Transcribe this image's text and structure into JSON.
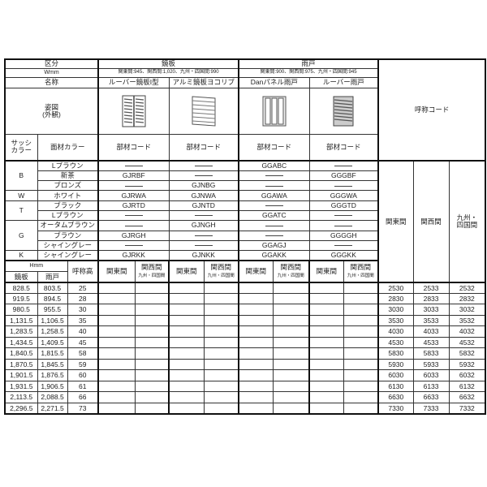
{
  "header": {
    "kubun": "区分",
    "kagami": "鏡板",
    "amado": "雨戸",
    "w_label": "Wmm",
    "w_kagami": "関東間:945、関西間:1,020、九州・四国間:990",
    "w_amado": "関東間:900、関西間:975、九州・四国間:945",
    "name_label": "名称",
    "names": [
      "ルーバー鏡板I型",
      "アルミ鏡板ヨコリブ",
      "Danパネル雨戸",
      "ルーバー雨戸"
    ],
    "figure_label_1": "姿図",
    "figure_label_2": "(外観)",
    "figure_icons": [
      "louver-panel-type1-icon",
      "aluminum-horizontal-rib-panel-icon",
      "dan-panel-shutter-icon",
      "louver-shutter-icon"
    ],
    "sash_label_1": "サッシ",
    "sash_label_2": "カラー",
    "face_color_label": "面材カラー",
    "part_code_label": "部材コード",
    "nominal_code_label": "呼称コード",
    "nominal_cols": [
      "関東間",
      "関西間",
      "九州・",
      "四国間"
    ]
  },
  "dash": "——",
  "color_rows": [
    {
      "group": "B",
      "span": 3,
      "color": "Lブラウン",
      "codes": [
        "——",
        "——",
        "GGABC",
        "——"
      ]
    },
    {
      "group": "",
      "color": "新茶",
      "codes": [
        "GJRBF",
        "——",
        "——",
        "GGGBF"
      ]
    },
    {
      "group": "",
      "color": "ブロンズ",
      "codes": [
        "——",
        "GJNBG",
        "——",
        "——"
      ]
    },
    {
      "group": "W",
      "span": 1,
      "color": "ホワイト",
      "codes": [
        "GJRWA",
        "GJNWA",
        "GGAWA",
        "GGGWA"
      ]
    },
    {
      "group": "T",
      "span": 2,
      "color": "ブラック",
      "codes": [
        "GJRTD",
        "GJNTD",
        "——",
        "GGGTD"
      ]
    },
    {
      "group": "",
      "color": "Lブラウン",
      "codes": [
        "——",
        "——",
        "GGATC",
        "——"
      ]
    },
    {
      "group": "G",
      "span": 3,
      "color": "オータムブラウン",
      "codes": [
        "——",
        "GJNGH",
        "——",
        "——"
      ]
    },
    {
      "group": "",
      "color": "ブラウン",
      "codes": [
        "GJRGH",
        "——",
        "——",
        "GGGGH"
      ]
    },
    {
      "group": "",
      "color": "シャイングレー",
      "codes": [
        "——",
        "——",
        "GGAGJ",
        "——"
      ]
    },
    {
      "group": "K",
      "span": 1,
      "color": "シャイングレー",
      "codes": [
        "GJRKK",
        "GJNKK",
        "GGAKK",
        "GGGKK"
      ]
    }
  ],
  "h_header": {
    "h_label": "Hmm",
    "kagami": "鏡板",
    "amado": "雨戸",
    "nominal_height": "呼称高",
    "kanto": "関東間",
    "kansai": "関西間",
    "kyushu": "九州・四国間"
  },
  "rows": [
    {
      "kagami": "828.5",
      "amado": "803.5",
      "nominal": "25",
      "codes": [
        "2530",
        "2533",
        "2532"
      ]
    },
    {
      "kagami": "919.5",
      "amado": "894.5",
      "nominal": "28",
      "codes": [
        "2830",
        "2833",
        "2832"
      ]
    },
    {
      "kagami": "980.5",
      "amado": "955.5",
      "nominal": "30",
      "codes": [
        "3030",
        "3033",
        "3032"
      ]
    },
    {
      "kagami": "1,131.5",
      "amado": "1,106.5",
      "nominal": "35",
      "codes": [
        "3530",
        "3533",
        "3532"
      ]
    },
    {
      "kagami": "1,283.5",
      "amado": "1,258.5",
      "nominal": "40",
      "codes": [
        "4030",
        "4033",
        "4032"
      ]
    },
    {
      "kagami": "1,434.5",
      "amado": "1,409.5",
      "nominal": "45",
      "codes": [
        "4530",
        "4533",
        "4532"
      ]
    },
    {
      "kagami": "1,840.5",
      "amado": "1,815.5",
      "nominal": "58",
      "codes": [
        "5830",
        "5833",
        "5832"
      ]
    },
    {
      "kagami": "1,870.5",
      "amado": "1,845.5",
      "nominal": "59",
      "codes": [
        "5930",
        "5933",
        "5932"
      ]
    },
    {
      "kagami": "1,901.5",
      "amado": "1,876.5",
      "nominal": "60",
      "codes": [
        "6030",
        "6033",
        "6032"
      ]
    },
    {
      "kagami": "1,931.5",
      "amado": "1,906.5",
      "nominal": "61",
      "codes": [
        "6130",
        "6133",
        "6132"
      ]
    },
    {
      "kagami": "2,113.5",
      "amado": "2,088.5",
      "nominal": "66",
      "codes": [
        "6630",
        "6633",
        "6632"
      ]
    },
    {
      "kagami": "2,296.5",
      "amado": "2,271.5",
      "nominal": "73",
      "codes": [
        "7330",
        "7333",
        "7332"
      ]
    }
  ]
}
